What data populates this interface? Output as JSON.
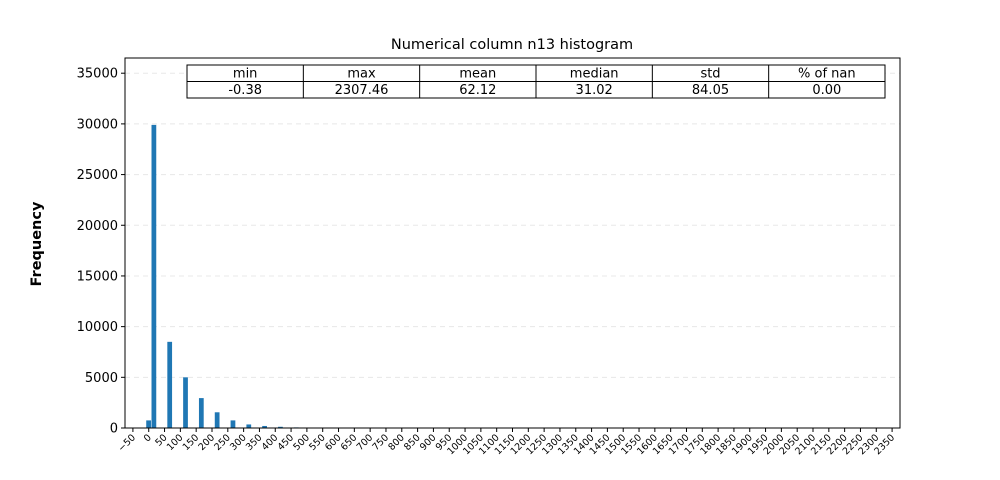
{
  "chart_data": {
    "type": "bar",
    "title": "Numerical column n13 histogram",
    "xlabel": "",
    "ylabel": "Frequency",
    "bar_color": "#1f77b4",
    "bin_width": 15,
    "xlim": [
      -75,
      2375
    ],
    "ylim": [
      0,
      36500
    ],
    "grid": "horizontal dashed",
    "x_ticks": [
      -50,
      0,
      50,
      100,
      150,
      200,
      250,
      300,
      350,
      400,
      450,
      500,
      550,
      600,
      650,
      700,
      750,
      800,
      850,
      900,
      950,
      1000,
      1050,
      1100,
      1150,
      1200,
      1250,
      1300,
      1350,
      1400,
      1450,
      1500,
      1550,
      1600,
      1650,
      1700,
      1750,
      1800,
      1850,
      1900,
      1950,
      2000,
      2050,
      2100,
      2150,
      2200,
      2250,
      2300,
      2350
    ],
    "x_tick_labels": [
      "−50",
      "0",
      "50",
      "100",
      "150",
      "200",
      "250",
      "300",
      "350",
      "400",
      "450",
      "500",
      "550",
      "600",
      "650",
      "700",
      "750",
      "800",
      "850",
      "900",
      "950",
      "1000",
      "1050",
      "1100",
      "1150",
      "1200",
      "1250",
      "1300",
      "1350",
      "1400",
      "1450",
      "1500",
      "1550",
      "1600",
      "1650",
      "1700",
      "1750",
      "1800",
      "1850",
      "1900",
      "1950",
      "2000",
      "2050",
      "2100",
      "2150",
      "2200",
      "2250",
      "2300",
      "2350"
    ],
    "y_ticks": [
      0,
      5000,
      10000,
      15000,
      20000,
      25000,
      30000,
      35000
    ],
    "y_tick_labels": [
      "0",
      "5000",
      "10000",
      "15000",
      "20000",
      "25000",
      "30000",
      "35000"
    ],
    "bins": [
      {
        "x": -0.38,
        "value": 750
      },
      {
        "x": 16.3,
        "value": 29900
      },
      {
        "x": 66.3,
        "value": 8500
      },
      {
        "x": 116.3,
        "value": 5000
      },
      {
        "x": 166.3,
        "value": 2950
      },
      {
        "x": 216.3,
        "value": 1550
      },
      {
        "x": 266.3,
        "value": 750
      },
      {
        "x": 316.3,
        "value": 350
      },
      {
        "x": 366.3,
        "value": 200
      },
      {
        "x": 416.3,
        "value": 120
      },
      {
        "x": 466.3,
        "value": 60
      },
      {
        "x": 516.3,
        "value": 35
      },
      {
        "x": 566.3,
        "value": 20
      },
      {
        "x": 616.3,
        "value": 15
      },
      {
        "x": 666.3,
        "value": 10
      },
      {
        "x": 716.3,
        "value": 8
      },
      {
        "x": 766.3,
        "value": 6
      },
      {
        "x": 816.3,
        "value": 5
      },
      {
        "x": 866.3,
        "value": 4
      },
      {
        "x": 916.3,
        "value": 3
      },
      {
        "x": 966.3,
        "value": 3
      },
      {
        "x": 1016.3,
        "value": 2
      },
      {
        "x": 1066.3,
        "value": 2
      },
      {
        "x": 1116.3,
        "value": 2
      },
      {
        "x": 1166.3,
        "value": 1
      },
      {
        "x": 1216.3,
        "value": 1
      },
      {
        "x": 1266.3,
        "value": 1
      },
      {
        "x": 1316.3,
        "value": 1
      },
      {
        "x": 1366.3,
        "value": 1
      },
      {
        "x": 1416.3,
        "value": 1
      },
      {
        "x": 1466.3,
        "value": 1
      },
      {
        "x": 1516.3,
        "value": 1
      },
      {
        "x": 1566.3,
        "value": 1
      },
      {
        "x": 1616.3,
        "value": 1
      },
      {
        "x": 1666.3,
        "value": 1
      },
      {
        "x": 1716.3,
        "value": 1
      },
      {
        "x": 1766.3,
        "value": 1
      },
      {
        "x": 1816.3,
        "value": 1
      },
      {
        "x": 1866.3,
        "value": 1
      },
      {
        "x": 1916.3,
        "value": 1
      },
      {
        "x": 1966.3,
        "value": 1
      },
      {
        "x": 2016.3,
        "value": 1
      },
      {
        "x": 2066.3,
        "value": 1
      },
      {
        "x": 2116.3,
        "value": 1
      },
      {
        "x": 2166.3,
        "value": 1
      },
      {
        "x": 2216.3,
        "value": 1
      },
      {
        "x": 2266.3,
        "value": 1
      },
      {
        "x": 2307.46,
        "value": 1
      }
    ],
    "stats_table": {
      "headers": [
        "min",
        "max",
        "mean",
        "median",
        "std",
        "% of nan"
      ],
      "values": [
        "-0.38",
        "2307.46",
        "62.12",
        "31.02",
        "84.05",
        "0.00"
      ]
    }
  }
}
